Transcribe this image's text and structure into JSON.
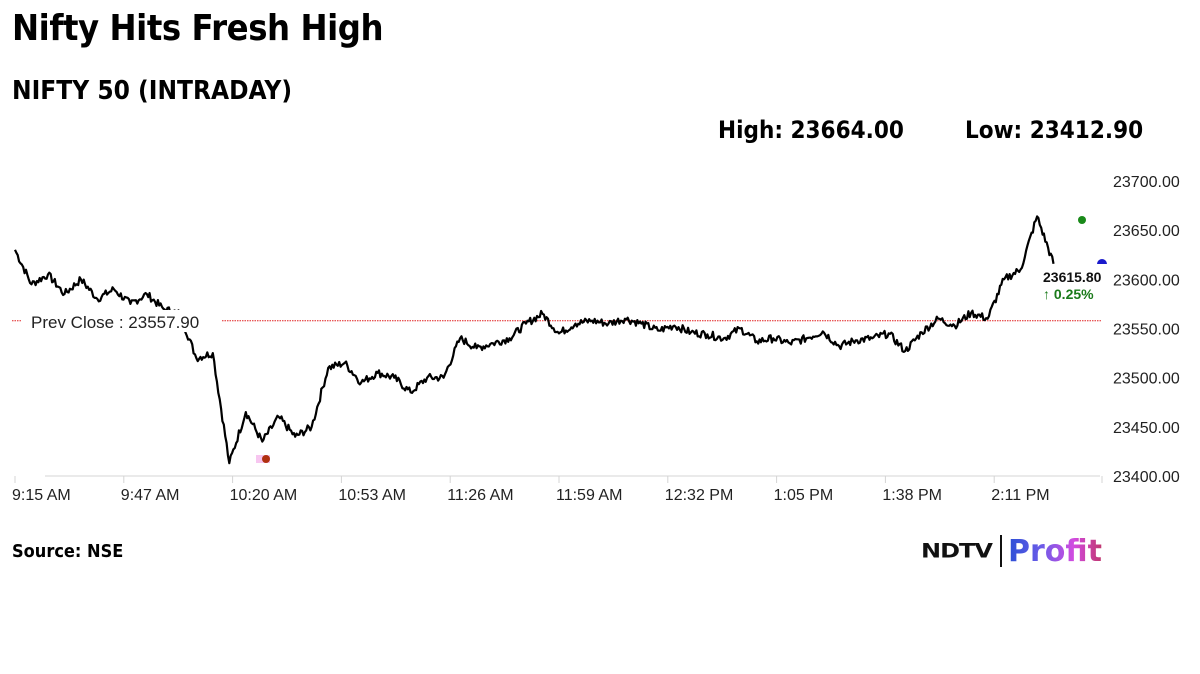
{
  "header": {
    "title": "Nifty Hits Fresh High",
    "subtitle": "NIFTY 50 (INTRADAY)",
    "high_label": "High: 23664.00",
    "low_label": "Low: 23412.90"
  },
  "footer": {
    "source": "Source: NSE",
    "logo_left": "NDTV",
    "logo_right": "Profit"
  },
  "chart_data": {
    "type": "line",
    "title": "NIFTY 50 (INTRADAY)",
    "xlabel": "",
    "ylabel": "",
    "ylim": [
      23400,
      23700
    ],
    "y_ticks": [
      "23700.00",
      "23650.00",
      "23600.00",
      "23550.00",
      "23500.00",
      "23450.00",
      "23400.00"
    ],
    "x_ticks": [
      "9:15 AM",
      "9:47 AM",
      "10:20 AM",
      "10:53 AM",
      "11:26 AM",
      "11:59 AM",
      "12:32 PM",
      "1:05 PM",
      "1:38 PM",
      "2:11 PM"
    ],
    "grid": false,
    "legend": null,
    "prev_close": {
      "label": "Prev Close : 23557.90",
      "value": 23557.9,
      "color": "#e02020"
    },
    "high": {
      "value": 23664.0,
      "time": "~2:25 PM",
      "color": "#1a8a1a"
    },
    "low": {
      "value": 23412.9,
      "time": "~10:20 AM",
      "color": "#b03010"
    },
    "last": {
      "value_label": "23615.80",
      "change_label": "↑ 0.25%",
      "value": 23615.8,
      "change_pct": 0.25,
      "color": "#1a7a1a",
      "marker_color": "#1a1acc"
    },
    "series": [
      {
        "name": "NIFTY 50",
        "color": "#000000",
        "x": [
          "9:15",
          "9:20",
          "9:25",
          "9:30",
          "9:35",
          "9:40",
          "9:45",
          "9:50",
          "9:55",
          "10:00",
          "10:05",
          "10:10",
          "10:15",
          "10:20",
          "10:25",
          "10:30",
          "10:35",
          "10:40",
          "10:45",
          "10:50",
          "10:55",
          "11:00",
          "11:05",
          "11:10",
          "11:15",
          "11:20",
          "11:25",
          "11:30",
          "11:35",
          "11:40",
          "11:45",
          "11:50",
          "11:55",
          "12:00",
          "12:05",
          "12:10",
          "12:15",
          "12:20",
          "12:25",
          "12:30",
          "12:35",
          "12:40",
          "12:45",
          "12:50",
          "12:55",
          "13:00",
          "13:05",
          "13:10",
          "13:15",
          "13:20",
          "13:25",
          "13:30",
          "13:35",
          "13:40",
          "13:45",
          "13:50",
          "13:55",
          "14:00",
          "14:05",
          "14:10",
          "14:15",
          "14:20",
          "14:25",
          "14:30"
        ],
        "values": [
          23630,
          23595,
          23605,
          23585,
          23600,
          23580,
          23590,
          23575,
          23585,
          23570,
          23565,
          23520,
          23525,
          23413,
          23465,
          23435,
          23460,
          23440,
          23450,
          23510,
          23515,
          23495,
          23505,
          23500,
          23485,
          23500,
          23500,
          23540,
          23530,
          23535,
          23540,
          23555,
          23565,
          23545,
          23555,
          23558,
          23555,
          23560,
          23555,
          23548,
          23553,
          23546,
          23544,
          23540,
          23550,
          23537,
          23540,
          23535,
          23540,
          23547,
          23532,
          23538,
          23540,
          23545,
          23527,
          23546,
          23560,
          23553,
          23566,
          23560,
          23600,
          23610,
          23664,
          23615.8
        ]
      }
    ]
  }
}
